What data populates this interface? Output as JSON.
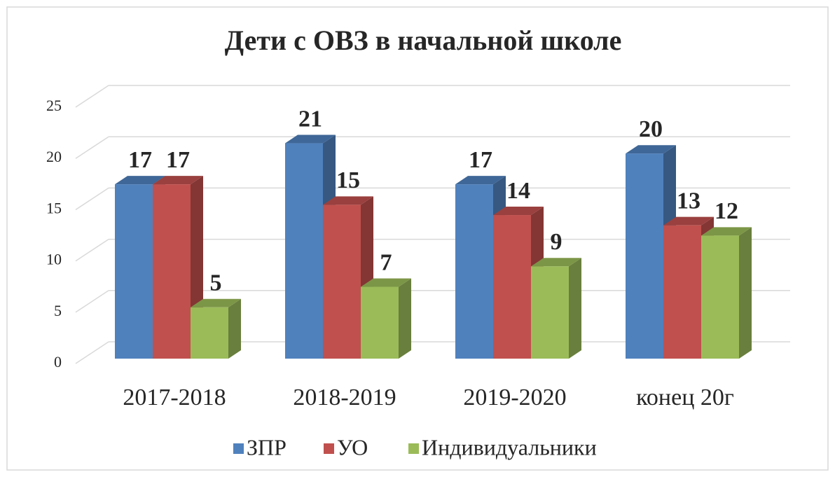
{
  "chart_data": {
    "type": "bar3d",
    "title": "Дети с ОВЗ в начальной школе",
    "categories": [
      "2017-2018",
      "2018-2019",
      "2019-2020",
      "конец 20г"
    ],
    "series": [
      {
        "name": "ЗПР",
        "color": "#4f81bd",
        "values": [
          17,
          21,
          17,
          20
        ]
      },
      {
        "name": "УО",
        "color": "#c0504d",
        "values": [
          17,
          15,
          14,
          13
        ]
      },
      {
        "name": "Индивидуальники",
        "color": "#9bbb59",
        "values": [
          5,
          7,
          9,
          12
        ]
      }
    ],
    "ylim": [
      0,
      25
    ],
    "yticks": [
      0,
      5,
      10,
      15,
      20,
      25
    ],
    "grid": true,
    "legend": "bottom"
  }
}
